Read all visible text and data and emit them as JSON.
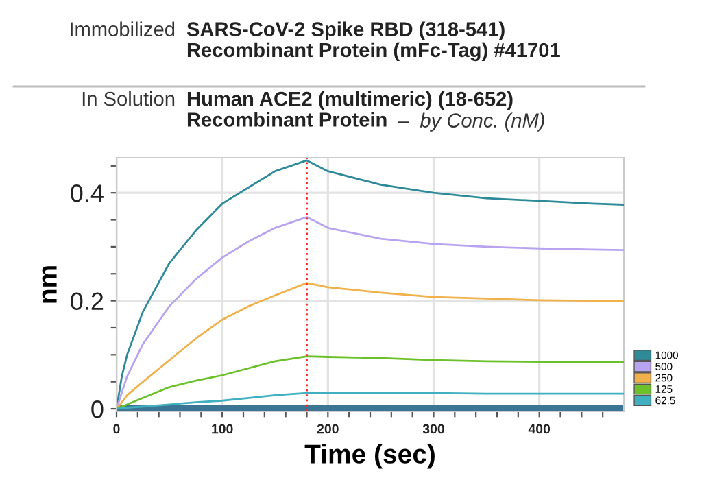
{
  "chart_data": {
    "type": "line",
    "annotations": [
      "Immobilized",
      "SARS-CoV-2 Spike RBD (318-541)\nRecombinant Protein (mFc-Tag) #41701",
      "In Solution",
      "Human ACE2 (multimeric) (18-652)\nRecombinant Protein",
      "–  by Conc. (nM)"
    ],
    "xlabel": "Time (sec)",
    "ylabel": "nm",
    "x": [
      0,
      5,
      10,
      25,
      50,
      75,
      100,
      125,
      150,
      180,
      200,
      250,
      300,
      350,
      400,
      450,
      480
    ],
    "series": [
      {
        "name": "1000",
        "color": "#2e8a99",
        "values": [
          0,
          0.06,
          0.1,
          0.18,
          0.27,
          0.33,
          0.38,
          0.41,
          0.44,
          0.46,
          0.44,
          0.415,
          0.4,
          0.39,
          0.385,
          0.38,
          0.378
        ]
      },
      {
        "name": "500",
        "color": "#b8a3f0",
        "values": [
          0,
          0.03,
          0.06,
          0.12,
          0.19,
          0.24,
          0.28,
          0.31,
          0.335,
          0.355,
          0.335,
          0.315,
          0.305,
          0.3,
          0.297,
          0.295,
          0.294
        ]
      },
      {
        "name": "250",
        "color": "#f0b04a",
        "values": [
          0,
          0.012,
          0.025,
          0.05,
          0.09,
          0.13,
          0.165,
          0.19,
          0.21,
          0.233,
          0.225,
          0.215,
          0.207,
          0.204,
          0.201,
          0.2,
          0.2
        ]
      },
      {
        "name": "125",
        "color": "#6cc02a",
        "values": [
          0,
          0.004,
          0.008,
          0.02,
          0.04,
          0.052,
          0.062,
          0.075,
          0.088,
          0.097,
          0.096,
          0.094,
          0.09,
          0.088,
          0.087,
          0.086,
          0.086
        ]
      },
      {
        "name": "62.5",
        "color": "#40b0c0",
        "values": [
          0,
          0.001,
          0.002,
          0.004,
          0.008,
          0.012,
          0.015,
          0.02,
          0.025,
          0.029,
          0.029,
          0.029,
          0.029,
          0.028,
          0.028,
          0.028,
          0.028
        ]
      }
    ],
    "xlim": [
      0,
      480
    ],
    "ylim": [
      -0.005,
      0.465
    ],
    "xticks": [
      0,
      {
        "value": 20,
        "label": null
      },
      {
        "value": 40,
        "label": null
      },
      {
        "value": 60,
        "label": null
      },
      {
        "value": 80,
        "label": null
      },
      100,
      {
        "value": 120,
        "label": null
      },
      {
        "value": 140,
        "label": null
      },
      {
        "value": 160,
        "label": null
      },
      {
        "value": 180,
        "label": null
      },
      200,
      {
        "value": 220,
        "label": null
      },
      {
        "value": 240,
        "label": null
      },
      {
        "value": 260,
        "label": null
      },
      {
        "value": 280,
        "label": null
      },
      300,
      {
        "value": 320,
        "label": null
      },
      {
        "value": 340,
        "label": null
      },
      {
        "value": 360,
        "label": null
      },
      {
        "value": 380,
        "label": null
      },
      400,
      {
        "value": 420,
        "label": null
      },
      {
        "value": 440,
        "label": null
      },
      {
        "value": 460,
        "label": null
      }
    ],
    "yticks": [
      0,
      {
        "value": 0.05,
        "label": null
      },
      {
        "value": 0.1,
        "label": null
      },
      {
        "value": 0.15,
        "label": null
      },
      0.2,
      {
        "value": 0.25,
        "label": null
      },
      {
        "value": 0.3,
        "label": null
      },
      {
        "value": 0.35,
        "label": null
      },
      0.4,
      {
        "value": 0.45,
        "label": null
      }
    ],
    "ref_lines": [
      {
        "axis": "y",
        "value": 0,
        "label": null,
        "color": "#3b7593",
        "line_style": "solid"
      },
      {
        "axis": "x",
        "value": 180,
        "label": null,
        "color": "#ff2020",
        "line_style": "dotted"
      }
    ],
    "grid": true,
    "legend": "bottom right",
    "marker": "none",
    "line_style": "solid"
  }
}
